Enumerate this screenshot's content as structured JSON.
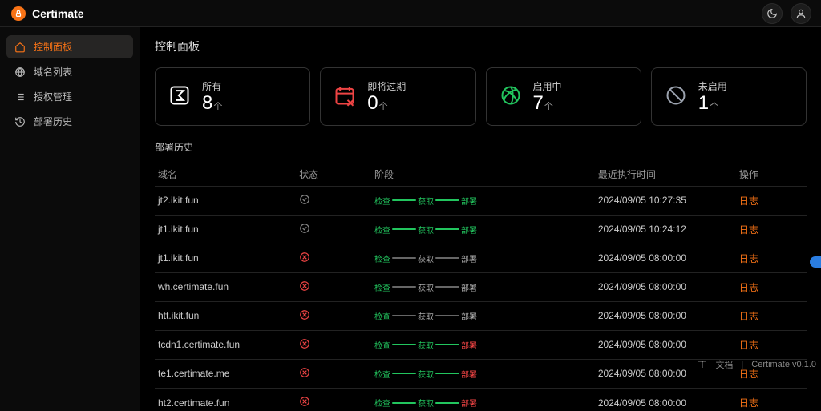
{
  "brand": {
    "name": "Certimate"
  },
  "sidebar": {
    "items": [
      {
        "label": "控制面板",
        "icon": "home",
        "active": true
      },
      {
        "label": "域名列表",
        "icon": "globe",
        "active": false
      },
      {
        "label": "授权管理",
        "icon": "list",
        "active": false
      },
      {
        "label": "部署历史",
        "icon": "history",
        "active": false
      }
    ]
  },
  "page": {
    "title": "控制面板",
    "history_title": "部署历史"
  },
  "cards": [
    {
      "label": "所有",
      "value": "8",
      "unit": "个",
      "icon": "sigma",
      "color": "#ffffff"
    },
    {
      "label": "即将过期",
      "value": "0",
      "unit": "个",
      "icon": "calendar-x",
      "color": "#ef4444"
    },
    {
      "label": "启用中",
      "value": "7",
      "unit": "个",
      "icon": "aperture",
      "color": "#22c55e"
    },
    {
      "label": "未启用",
      "value": "1",
      "unit": "个",
      "icon": "ban",
      "color": "#9ca3af"
    }
  ],
  "table": {
    "headers": {
      "domain": "域名",
      "status": "状态",
      "stage": "阶段",
      "time": "最近执行时间",
      "action": "操作"
    },
    "stage_labels": {
      "check": "检查",
      "fetch": "获取",
      "deploy": "部署"
    },
    "action_label": "日志",
    "rows": [
      {
        "domain": "jt2.ikit.fun",
        "status": "ok",
        "bar1": "green",
        "bar2": "green",
        "s1": "green",
        "s2": "green",
        "s3": "green",
        "time": "2024/09/05 10:27:35"
      },
      {
        "domain": "jt1.ikit.fun",
        "status": "ok",
        "bar1": "green",
        "bar2": "green",
        "s1": "green",
        "s2": "green",
        "s3": "green",
        "time": "2024/09/05 10:24:12"
      },
      {
        "domain": "jt1.ikit.fun",
        "status": "error",
        "bar1": "white",
        "bar2": "white",
        "s1": "green",
        "s2": "white",
        "s3": "white",
        "time": "2024/09/05 08:00:00"
      },
      {
        "domain": "wh.certimate.fun",
        "status": "error",
        "bar1": "white",
        "bar2": "white",
        "s1": "green",
        "s2": "white",
        "s3": "white",
        "time": "2024/09/05 08:00:00"
      },
      {
        "domain": "htt.ikit.fun",
        "status": "error",
        "bar1": "white",
        "bar2": "white",
        "s1": "green",
        "s2": "white",
        "s3": "white",
        "time": "2024/09/05 08:00:00"
      },
      {
        "domain": "tcdn1.certimate.fun",
        "status": "error",
        "bar1": "green",
        "bar2": "green",
        "s1": "green",
        "s2": "green",
        "s3": "red",
        "time": "2024/09/05 08:00:00"
      },
      {
        "domain": "te1.certimate.me",
        "status": "error",
        "bar1": "green",
        "bar2": "green",
        "s1": "green",
        "s2": "green",
        "s3": "red",
        "time": "2024/09/05 08:00:00"
      },
      {
        "domain": "ht2.certimate.fun",
        "status": "error",
        "bar1": "green",
        "bar2": "green",
        "s1": "green",
        "s2": "green",
        "s3": "red",
        "time": "2024/09/05 08:00:00"
      }
    ]
  },
  "footer": {
    "docs": "文档",
    "version": "Certimate v0.1.0"
  },
  "colors": {
    "accent": "#f97316",
    "green": "#22c55e",
    "red": "#ef4444",
    "muted": "#9ca3af",
    "bg": "#000000",
    "border": "#222222"
  }
}
